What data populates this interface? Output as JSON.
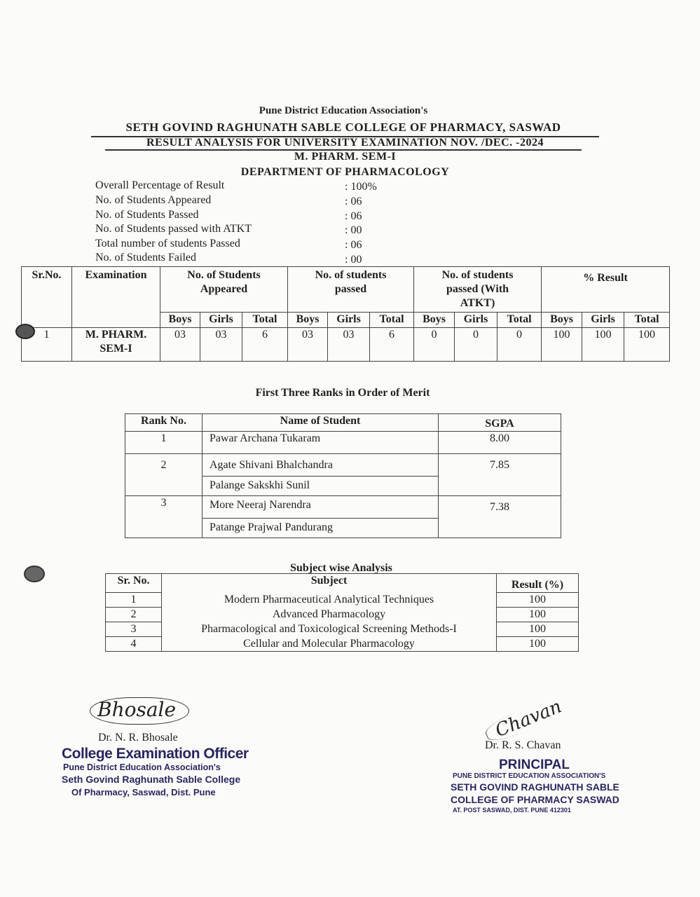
{
  "header": {
    "association": "Pune District Education Association's",
    "college": "SETH GOVIND RAGHUNATH SABLE COLLEGE OF PHARMACY, SASWAD",
    "title": "RESULT ANALYSIS FOR UNIVERSITY EXAMINATION NOV. /DEC. -2024",
    "course": "M. PHARM. SEM-I",
    "department": "DEPARTMENT OF PHARMACOLOGY"
  },
  "summary": [
    {
      "label": "Overall Percentage of Result",
      "value": ": 100%"
    },
    {
      "label": "No. of Students Appeared",
      "value": ": 06"
    },
    {
      "label": "No. of Students Passed",
      "value": ": 06"
    },
    {
      "label": "No. of Students passed with ATKT",
      "value": ": 00"
    },
    {
      "label": "Total number of students Passed",
      "value": ": 06"
    },
    {
      "label": "No. of Students Failed",
      "value": ": 00"
    }
  ],
  "result_table": {
    "headers": [
      "Sr.No.",
      "Examination",
      "No. of Students Appeared",
      "No. of students passed",
      "No. of students passed (With ATKT)",
      "% Result"
    ],
    "sub_headers": [
      "Boys",
      "Girls",
      "Total"
    ],
    "rows": [
      {
        "sr": "1",
        "exam": "M. PHARM. SEM-I",
        "appeared": [
          "03",
          "03",
          "6"
        ],
        "passed": [
          "03",
          "03",
          "6"
        ],
        "atkt": [
          "0",
          "0",
          "0"
        ],
        "result": [
          "100",
          "100",
          "100"
        ]
      }
    ]
  },
  "ranks": {
    "title": "First Three Ranks in Order of Merit",
    "headers": [
      "Rank No.",
      "Name of Student",
      "SGPA"
    ],
    "rows": [
      {
        "rank": "1",
        "names": [
          "Pawar Archana Tukaram"
        ],
        "sgpa": "8.00"
      },
      {
        "rank": "2",
        "names": [
          "Agate Shivani Bhalchandra",
          "Palange Sakskhi Sunil"
        ],
        "sgpa": "7.85"
      },
      {
        "rank": "3",
        "names": [
          "More Neeraj Narendra",
          "Patange Prajwal Pandurang"
        ],
        "sgpa": "7.38"
      }
    ]
  },
  "subjects": {
    "title": "Subject wise Analysis",
    "headers": [
      "Sr. No.",
      "Subject",
      "Result (%)"
    ],
    "rows": [
      {
        "sr": "1",
        "subject": "Modern Pharmaceutical Analytical Techniques",
        "result": "100"
      },
      {
        "sr": "2",
        "subject": "Advanced Pharmacology",
        "result": "100"
      },
      {
        "sr": "3",
        "subject": "Pharmacological and Toxicological Screening Methods-I",
        "result": "100"
      },
      {
        "sr": "4",
        "subject": "Cellular and Molecular Pharmacology",
        "result": "100"
      }
    ]
  },
  "signatures": {
    "left": {
      "signature": "Bhosale",
      "name": "Dr. N. R. Bhosale",
      "stamp": [
        "College Examination Officer",
        "Pune District Education Association's",
        "Seth Govind Raghunath Sable College",
        "Of Pharmacy, Saswad, Dist. Pune"
      ]
    },
    "right": {
      "signature": "Chavan",
      "name": "Dr. R. S. Chavan",
      "stamp": [
        "PRINCIPAL",
        "PUNE DISTRICT EDUCATION ASSOCIATION'S",
        "SETH GOVIND RAGHUNATH SABLE",
        "COLLEGE OF PHARMACY SASWAD",
        "AT. POST SASWAD, DIST. PUNE 412301"
      ]
    }
  }
}
